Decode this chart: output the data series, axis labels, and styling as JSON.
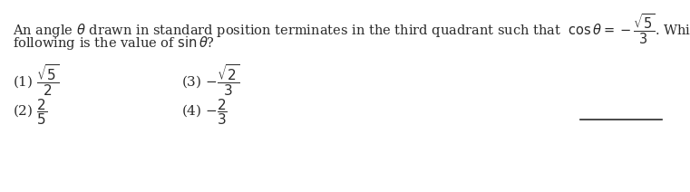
{
  "background_color": "#ffffff",
  "text_color": "#2a2a2a",
  "main_text": "An angle $\\theta$ drawn in standard position terminates in the third quadrant such that  $\\cos\\theta = -\\dfrac{\\sqrt{5}}{3}$. Which of the",
  "second_line": "following is the value of $\\sin\\theta$?",
  "option1": "(1) $\\dfrac{\\sqrt{5}}{2}$",
  "option2": "(2) $\\dfrac{2}{5}$",
  "option3": "(3) $-\\dfrac{\\sqrt{2}}{3}$",
  "option4": "(4) $-\\dfrac{2}{3}$",
  "figwidth": 7.61,
  "figheight": 2.12,
  "dpi": 100,
  "font_size_main": 10.5,
  "font_size_options": 11
}
